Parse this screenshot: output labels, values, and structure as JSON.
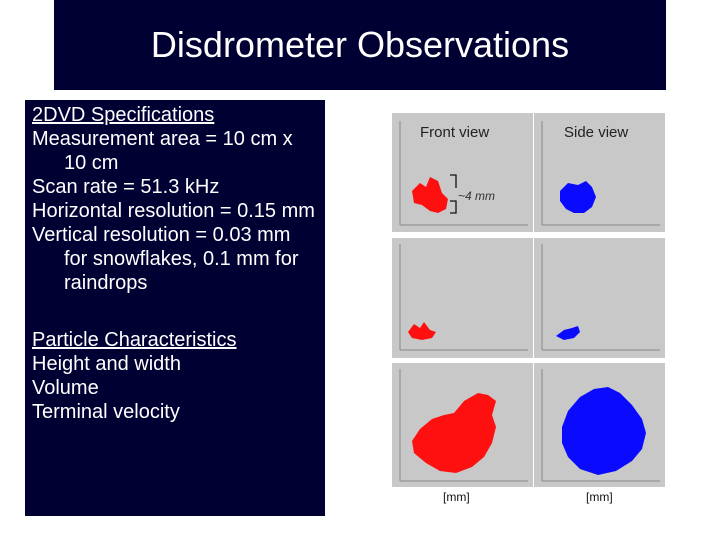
{
  "slide": {
    "title": "Disdrometer Observations"
  },
  "specs": {
    "heading": "2DVD Specifications",
    "lines": [
      "Measurement area = 10 cm x 10 cm",
      "Scan rate = 51.3 kHz",
      "Horizontal resolution = 0.15 mm",
      "Vertical resolution = 0.03 mm  for snowflakes, 0.1 mm for raindrops"
    ]
  },
  "particles": {
    "heading": "Particle Characteristics",
    "lines": [
      "Height and width",
      "Volume",
      "Terminal velocity"
    ]
  },
  "figure": {
    "front_label": "Front view",
    "side_label": "Side view",
    "size_annotation": "~4 mm",
    "unit_left": "[mm]",
    "unit_right": "[mm]",
    "colors": {
      "front": "#ff1010",
      "side": "#0a0aff",
      "panel_bg": "#c8c8c8"
    }
  }
}
